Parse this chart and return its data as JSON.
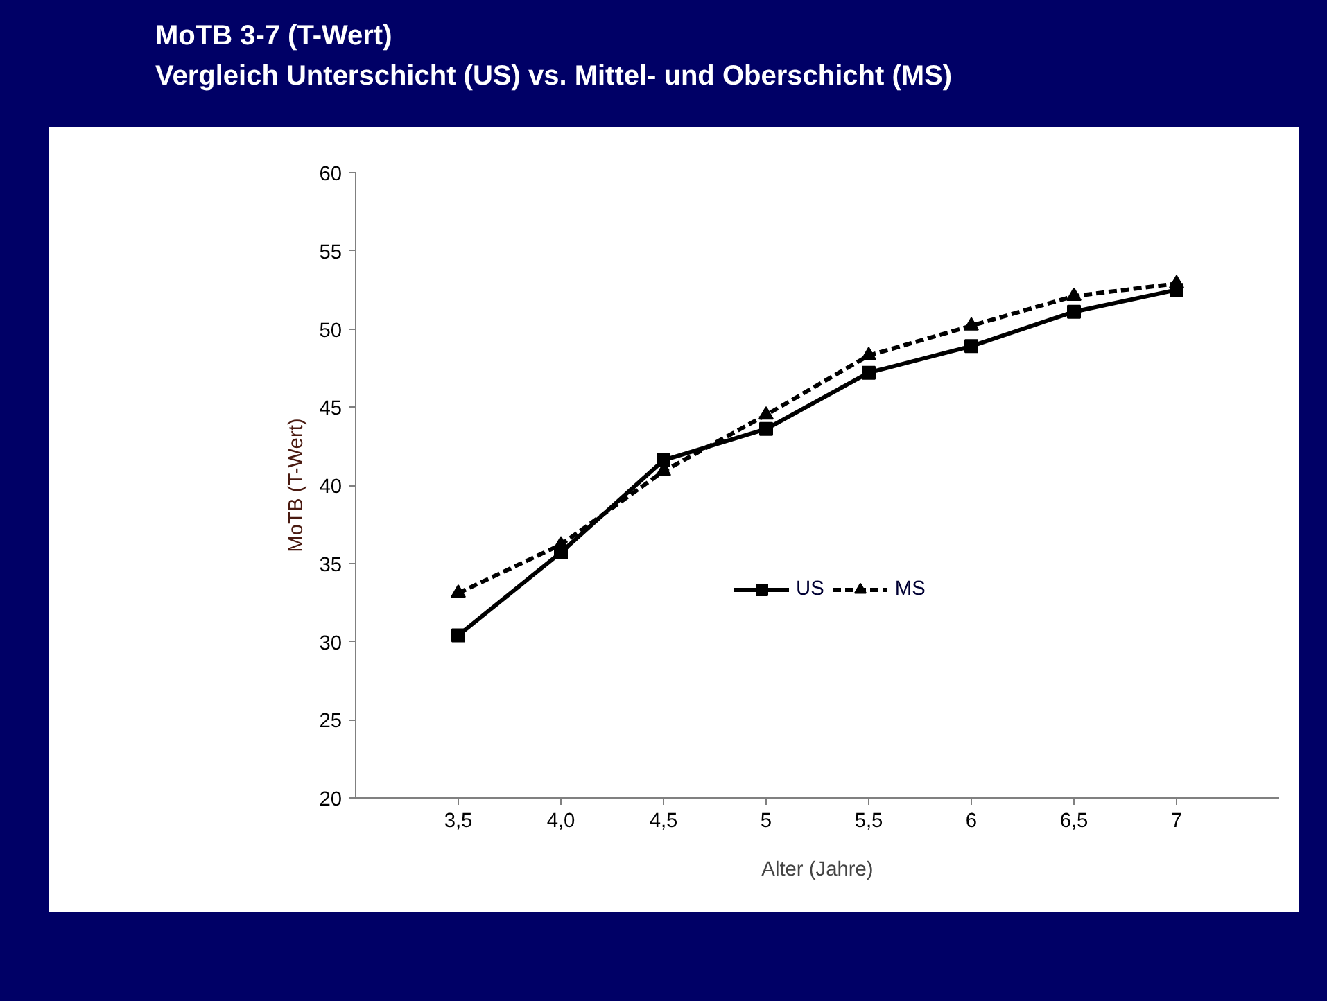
{
  "chart_data": {
    "type": "line",
    "title": "MoTB 3-7 (T-Wert)",
    "subtitle": "Vergleich Unterschicht (US) vs. Mittel- und Oberschicht (MS)",
    "xlabel": "Alter (Jahre)",
    "ylabel": "MoTB (T-Wert)",
    "categories": [
      "3,5",
      "4,0",
      "4,5",
      "5",
      "5,5",
      "6",
      "6,5",
      "7"
    ],
    "series": [
      {
        "name": "US",
        "color": "#000000",
        "marker": "square",
        "line_style": "solid",
        "values": [
          30.4,
          35.7,
          41.6,
          43.6,
          47.2,
          48.9,
          51.1,
          52.5
        ]
      },
      {
        "name": "MS",
        "color": "#000000",
        "marker": "triangle",
        "line_style": "dashed",
        "values": [
          33.1,
          36.2,
          40.9,
          44.5,
          48.3,
          50.2,
          52.1,
          52.9
        ]
      }
    ],
    "ylim": [
      20,
      60
    ],
    "yticks": [
      20,
      25,
      30,
      35,
      40,
      45,
      50,
      55,
      60
    ],
    "grid": false,
    "legend": "center"
  }
}
